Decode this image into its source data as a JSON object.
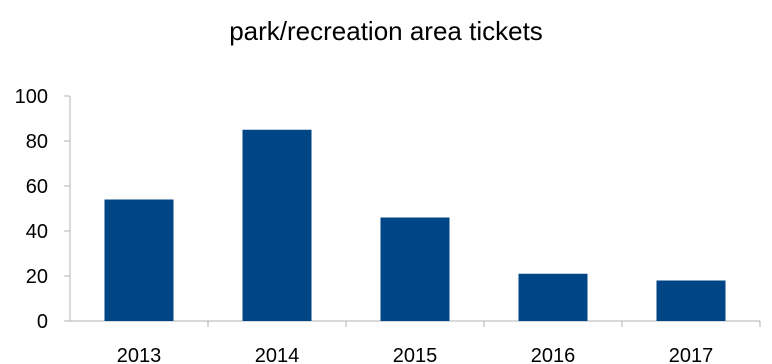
{
  "chart_data": {
    "type": "bar",
    "title": "park/recreation area tickets",
    "categories": [
      "2013",
      "2014",
      "2015",
      "2016",
      "2017"
    ],
    "values": [
      54,
      85,
      46,
      21,
      18
    ],
    "ylim": [
      0,
      100
    ],
    "yticks": [
      0,
      20,
      40,
      60,
      80,
      100
    ],
    "grid": false,
    "legend": "none",
    "bar_color": "#004586"
  }
}
